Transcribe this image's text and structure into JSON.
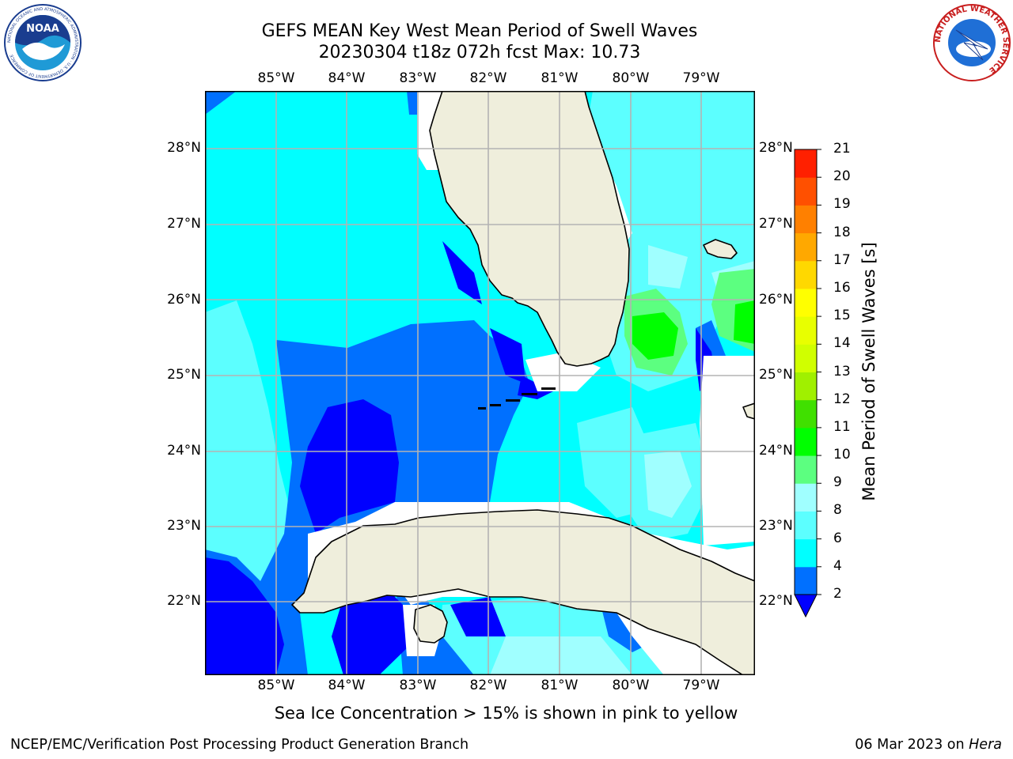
{
  "title": {
    "line1": "GEFS MEAN Key West Mean Period of Swell Waves",
    "line2": "20230304 t18z 072h fcst   Max: 10.73"
  },
  "map": {
    "lon_labels": [
      "85°W",
      "84°W",
      "83°W",
      "82°W",
      "81°W",
      "80°W",
      "79°W"
    ],
    "lat_labels": [
      "28°N",
      "27°N",
      "26°N",
      "25°N",
      "24°N",
      "23°N",
      "22°N"
    ],
    "land_color": "#efeedc",
    "grid_color": "#b3b3b3"
  },
  "colorbar": {
    "label": "Mean Period of Swell Waves [s]",
    "ticks": [
      "2",
      "4",
      "6",
      "8",
      "9",
      "10",
      "11",
      "12",
      "13",
      "14",
      "15",
      "16",
      "17",
      "18",
      "19",
      "20",
      "21"
    ],
    "colors": [
      "#0000ff",
      "#0070ff",
      "#00ffff",
      "#5cffff",
      "#a0ffff",
      "#5cff80",
      "#00ff00",
      "#40e000",
      "#a0f000",
      "#d0ff00",
      "#e8ff00",
      "#ffff00",
      "#ffd800",
      "#ffa800",
      "#ff8000",
      "#ff5000",
      "#ff2000",
      "#ff0000"
    ],
    "under_color": "#0000ff"
  },
  "note": "Sea Ice Concentration > 15% is shown in pink to yellow",
  "footer": {
    "left": "NCEP/EMC/Verification Post Processing Product Generation Branch",
    "date": "06 Mar 2023 on ",
    "host": "Hera"
  },
  "logos": {
    "noaa_text": "NOAA",
    "noaa_ring_text": "NATIONAL OCEANIC AND ATMOSPHERIC ADMINISTRATION · U.S. DEPARTMENT OF COMMERCE",
    "nws_ring_text": "NATIONAL WEATHER SERVICE"
  }
}
